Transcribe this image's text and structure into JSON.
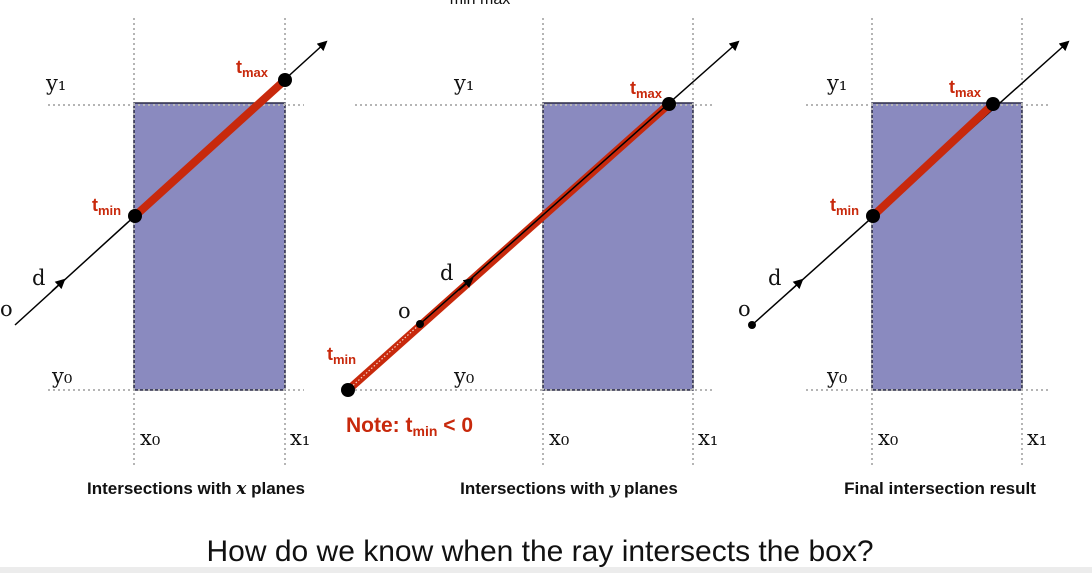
{
  "colors": {
    "box_fill": "#8a8abf",
    "box_stroke": "#2b2b46",
    "ray_highlight": "#c8290c",
    "grid_dots": "#b5b5b5",
    "label_red": "#c8290c"
  },
  "labels": {
    "y1": "y₁",
    "y0": "y₀",
    "x0": "x₀",
    "x1": "x₁",
    "o": "o",
    "d": "d",
    "t": "t",
    "min": "min",
    "max": "max"
  },
  "top_fragment": "min   max",
  "note": {
    "prefix": "Note:  t",
    "sub": "min",
    "suffix": " < 0"
  },
  "captions": {
    "x_planes_pre": "Intersections with ",
    "x_planes_var": "x",
    "x_planes_post": " planes",
    "y_planes_pre": "Intersections with ",
    "y_planes_var": "y",
    "y_planes_post": " planes",
    "final": "Final intersection result"
  },
  "question": "How do we know when the ray intersects the box?"
}
